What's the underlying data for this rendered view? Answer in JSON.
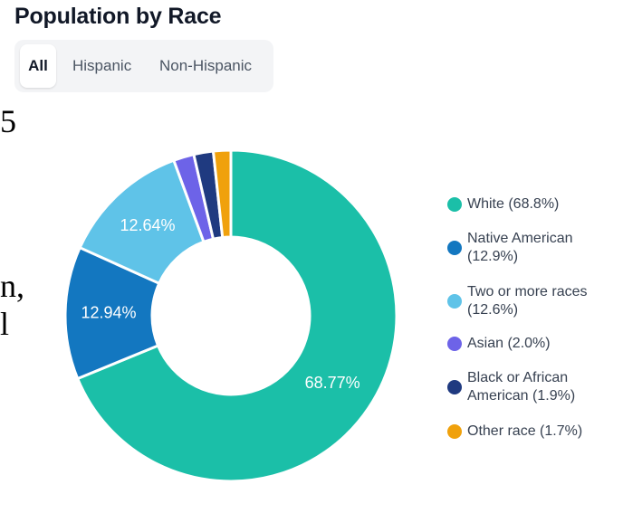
{
  "title": "Population by Race",
  "tabs": [
    {
      "label": "All",
      "active": true
    },
    {
      "label": "Hispanic",
      "active": false
    },
    {
      "label": "Non-Hispanic",
      "active": false
    }
  ],
  "background_text": [
    "5",
    "n,",
    "l"
  ],
  "chart_data": {
    "type": "pie",
    "donut": true,
    "slices": [
      {
        "name": "White",
        "value": 68.77,
        "color": "#1bbfa8",
        "inner_label": "68.77%",
        "legend": "White (68.8%)"
      },
      {
        "name": "Native American",
        "value": 12.94,
        "color": "#1377c0",
        "inner_label": "12.94%",
        "legend": "Native American (12.9%)"
      },
      {
        "name": "Two or more races",
        "value": 12.64,
        "color": "#5fc3e8",
        "inner_label": "12.64%",
        "legend": "Two or more races (12.6%)"
      },
      {
        "name": "Asian",
        "value": 2.0,
        "color": "#6d63e8",
        "inner_label": "",
        "legend": "Asian (2.0%)"
      },
      {
        "name": "Black or African American",
        "value": 1.9,
        "color": "#1f3a80",
        "inner_label": "",
        "legend": "Black or African American (1.9%)"
      },
      {
        "name": "Other race",
        "value": 1.7,
        "color": "#f0a10c",
        "inner_label": "",
        "legend": "Other race (1.7%)"
      }
    ],
    "legend_position": "right"
  }
}
